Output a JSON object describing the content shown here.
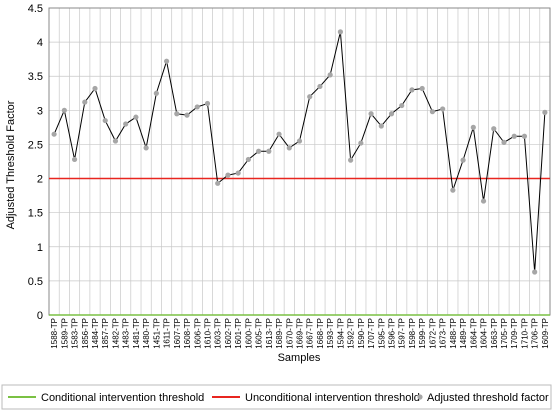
{
  "chart_data": {
    "type": "line",
    "x_label": "Samples",
    "y_label": "Adjusted Threshold Factor",
    "categories": [
      "1588-TP",
      "1589-TP",
      "1583-TP",
      "1856-TP",
      "1484-TP",
      "1857-TP",
      "1482-TP",
      "1483-TP",
      "1481-TP",
      "1480-TP",
      "1451-TP",
      "1611-TP",
      "1607-TP",
      "1608-TP",
      "1606-TP",
      "1610-TP",
      "1603-TP",
      "1602-TP",
      "1601-TP",
      "1600-TP",
      "1605-TP",
      "1613-TP",
      "1689-TP",
      "1670-TP",
      "1669-TP",
      "1667-TP",
      "1668-TP",
      "1593-TP",
      "1594-TP",
      "1592-TP",
      "1590-TP",
      "1707-TP",
      "1595-TP",
      "1596-TP",
      "1597-TP",
      "1598-TP",
      "1599-TP",
      "1672-TP",
      "1673-TP",
      "1488-TP",
      "1489-TP",
      "1664-TP",
      "1604-TP",
      "1663-TP",
      "1705-TP",
      "1709-TP",
      "1710-TP",
      "1706-TP",
      "1609-TP"
    ],
    "thresholds": [
      {
        "name": "Conditional intervention threshold",
        "color": "#7ac143",
        "value": 0
      },
      {
        "name": "Unconditional intervention threshold",
        "color": "#e8251f",
        "value": 2
      }
    ],
    "series": [
      {
        "name": "Adjusted threshold factor",
        "color": "#000000",
        "marker_color": "#a6a6a6",
        "values": [
          2.65,
          3.0,
          2.28,
          3.12,
          3.32,
          2.85,
          2.55,
          2.8,
          2.9,
          2.45,
          3.25,
          3.72,
          2.95,
          2.93,
          3.05,
          3.1,
          1.93,
          2.05,
          2.08,
          2.28,
          2.4,
          2.4,
          2.65,
          2.45,
          2.55,
          3.2,
          3.35,
          3.52,
          4.15,
          2.27,
          2.52,
          2.95,
          2.77,
          2.95,
          3.07,
          3.3,
          3.32,
          2.98,
          3.02,
          1.83,
          2.27,
          2.75,
          1.67,
          2.73,
          2.53,
          2.62,
          2.62,
          0.63,
          2.97
        ]
      }
    ],
    "ylim": [
      0,
      4.5
    ],
    "yticks": [
      0,
      0.5,
      1,
      1.5,
      2,
      2.5,
      3,
      3.5,
      4,
      4.5
    ],
    "grid": true
  }
}
